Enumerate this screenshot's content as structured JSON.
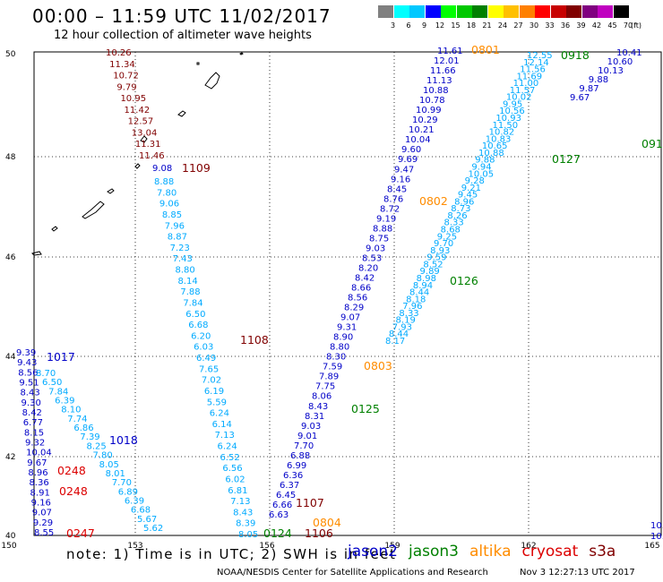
{
  "header": {
    "title": "00:00 – 11:59 UTC 11/02/2017",
    "subtitle": "12 hour collection of altimeter wave heights"
  },
  "color_scale": {
    "unit": "(ft)",
    "levels": [
      "3",
      "6",
      "9",
      "12",
      "15",
      "18",
      "21",
      "24",
      "27",
      "30",
      "33",
      "36",
      "39",
      "42",
      "45",
      "70"
    ],
    "colors": [
      "#808080",
      "#00ffff",
      "#00c8ff",
      "#0000ff",
      "#00ff00",
      "#00c800",
      "#008000",
      "#ffff00",
      "#ffc000",
      "#ff8000",
      "#ff0000",
      "#c80000",
      "#800000",
      "#800080",
      "#c000c0",
      "#000000"
    ]
  },
  "axes": {
    "lon_ticks": [
      "150",
      "153",
      "156",
      "159",
      "162",
      "165"
    ],
    "lat_ticks": [
      "50",
      "48",
      "46",
      "44",
      "42",
      "40"
    ]
  },
  "colors": {
    "jason2": "#0000c8",
    "jason3": "#008000",
    "altika": "#ff8c00",
    "cryosat": "#dc0000",
    "s3a": "#800000",
    "cyan": "#00aaff",
    "green_light": "#33cc33"
  },
  "pass_labels": [
    {
      "text": "1109",
      "sat": "s3a"
    },
    {
      "text": "1108",
      "sat": "s3a"
    },
    {
      "text": "1107",
      "sat": "s3a"
    },
    {
      "text": "1106",
      "sat": "s3a"
    },
    {
      "text": "1017",
      "sat": "jason2"
    },
    {
      "text": "1018",
      "sat": "jason2"
    },
    {
      "text": "0248",
      "sat": "cryosat"
    },
    {
      "text": "0248",
      "sat": "cryosat"
    },
    {
      "text": "0247",
      "sat": "cryosat"
    },
    {
      "text": "0801",
      "sat": "altika"
    },
    {
      "text": "0802",
      "sat": "altika"
    },
    {
      "text": "0803",
      "sat": "altika"
    },
    {
      "text": "0804",
      "sat": "altika"
    },
    {
      "text": "0918",
      "sat": "jason3"
    },
    {
      "text": "0127",
      "sat": "jason3"
    },
    {
      "text": "0126",
      "sat": "jason3"
    },
    {
      "text": "0125",
      "sat": "jason3"
    },
    {
      "text": "0124",
      "sat": "jason3"
    },
    {
      "text": "091",
      "sat": "jason3"
    }
  ],
  "tracks": [
    {
      "id": "s3a-1109",
      "color": "s3a",
      "values": [
        "10.26",
        "11.34",
        "10.72",
        "9.79",
        "10.95",
        "11.42",
        "12.57",
        "13.04",
        "11.31",
        "11.46"
      ]
    },
    {
      "id": "s3a-1109b",
      "color": "jason2",
      "values": [
        "9.08"
      ]
    },
    {
      "id": "s3a-1108",
      "color": "cyan",
      "values": [
        "8.88",
        "7.80",
        "9.06",
        "8.85",
        "7.96",
        "8.87",
        "7.23",
        "7.43",
        "8.80",
        "8.14",
        "7.88",
        "7.84",
        "6.50",
        "6.68",
        "6.20",
        "6.03",
        "6.49",
        "7.65",
        "7.02",
        "6.19",
        "5.59",
        "6.24",
        "6.14",
        "7.13",
        "6.24",
        "6.52",
        "6.56",
        "6.02",
        "6.81",
        "7.13",
        "8.43",
        "8.39",
        "8.05"
      ]
    },
    {
      "id": "j2-1017",
      "color": "jason2",
      "values": [
        "9.39",
        "9.43",
        "8.56",
        "9.51",
        "8.43",
        "9.30",
        "8.42",
        "6.77",
        "8.15",
        "9.32",
        "10.04",
        "9.67",
        "8.96",
        "8.36",
        "8.91",
        "9.16",
        "9.07",
        "9.29",
        "8.55"
      ]
    },
    {
      "id": "c2-0248",
      "color": "cyan",
      "values": [
        "8.70",
        "6.50",
        "7.84",
        "6.39",
        "8.10",
        "7.74",
        "6.86",
        "7.39",
        "8.25",
        "7.80",
        "8.05",
        "8.01",
        "7.70",
        "6.89",
        "6.39",
        "6.68",
        "5.67",
        "5.62"
      ]
    },
    {
      "id": "al-0801",
      "color": "jason2",
      "values": [
        "11.61",
        "12.01",
        "11.66",
        "11.13",
        "10.88",
        "10.78",
        "10.99",
        "10.29",
        "10.21",
        "10.04",
        "9.60",
        "9.69",
        "9.47",
        "9.16",
        "8.45",
        "8.76",
        "8.72",
        "9.19",
        "8.88",
        "8.75",
        "9.03",
        "8.53",
        "8.20",
        "8.42",
        "8.66",
        "8.56",
        "8.29",
        "9.07",
        "9.31",
        "8.90",
        "8.80",
        "8.30",
        "7.59",
        "7.89",
        "7.75",
        "8.06",
        "8.43",
        "8.31",
        "9.03",
        "9.01",
        "7.70",
        "6.88",
        "6.99",
        "6.36",
        "6.37",
        "6.45",
        "6.66",
        "6.63"
      ]
    },
    {
      "id": "j3-0127",
      "color": "cyan",
      "values": [
        "12.55",
        "12.14",
        "11.56",
        "11.69",
        "11.00",
        "11.57",
        "10.02",
        "9.95",
        "10.56",
        "10.93",
        "11.50",
        "10.82",
        "10.83",
        "10.65",
        "10.88",
        "9.88",
        "9.94",
        "10.05",
        "9.28",
        "9.21",
        "9.45",
        "8.96",
        "8.73",
        "8.26",
        "8.33",
        "8.68",
        "9.25",
        "9.70",
        "8.93",
        "9.59",
        "8.52",
        "9.89",
        "8.98",
        "8.94",
        "8.44",
        "8.18",
        "7.96",
        "8.33",
        "8.19",
        "7.93",
        "8.44",
        "8.17"
      ]
    },
    {
      "id": "j2-0918",
      "color": "jason2",
      "values": [
        "10.41",
        "10.60",
        "10.13",
        "9.88",
        "9.87",
        "9.67"
      ]
    }
  ],
  "note": "note: 1) Time is in UTC; 2) SWH is in feet",
  "legend": [
    {
      "label": "jason2",
      "color": "#0000c8"
    },
    {
      "label": "jason3",
      "color": "#008000"
    },
    {
      "label": "altika",
      "color": "#ff8c00"
    },
    {
      "label": "cryosat",
      "color": "#dc0000"
    },
    {
      "label": "s3a",
      "color": "#800000"
    }
  ],
  "credit": "NOAA/NESDIS Center for Satellite Applications and Research",
  "timestamp": "Nov  3 12:27:13 UTC 2017",
  "extra_right": [
    "10.",
    "10."
  ]
}
